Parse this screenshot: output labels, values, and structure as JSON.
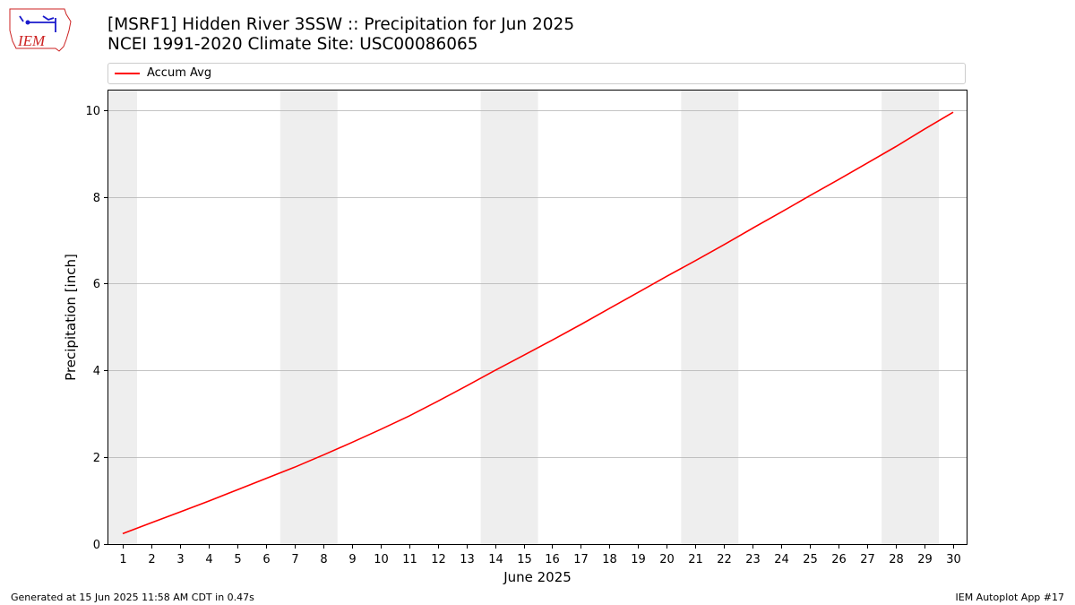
{
  "header": {
    "title_line1": "[MSRF1] Hidden River 3SSW :: Precipitation for Jun 2025",
    "title_line2": "NCEI 1991-2020 Climate Site: USC00086065",
    "logo_text": "IEM"
  },
  "footer": {
    "generated": "Generated at 15 Jun 2025 11:58 AM CDT in 0.47s",
    "app": "IEM Autoplot App #17"
  },
  "colors": {
    "line": "#ff0000",
    "weekend_band": "#eeeeee",
    "grid": "#b0b0b0",
    "logo_red": "#cc2222",
    "logo_blue": "#1a1acc"
  },
  "chart_data": {
    "type": "line",
    "title": "",
    "xlabel": "June 2025",
    "ylabel": "Precipitation [inch]",
    "xlim": [
      0.5,
      30.5
    ],
    "ylim": [
      0,
      10.45
    ],
    "x_ticks": [
      "1",
      "2",
      "3",
      "4",
      "5",
      "6",
      "7",
      "8",
      "9",
      "10",
      "11",
      "12",
      "13",
      "14",
      "15",
      "16",
      "17",
      "18",
      "19",
      "20",
      "21",
      "22",
      "23",
      "24",
      "25",
      "26",
      "27",
      "28",
      "29",
      "30"
    ],
    "y_ticks": [
      "0",
      "2",
      "4",
      "6",
      "8",
      "10"
    ],
    "y_tick_values": [
      0,
      2,
      4,
      6,
      8,
      10
    ],
    "grid": "horizontal",
    "legend_position": "top",
    "weekend_bands": [
      [
        0.5,
        1.5
      ],
      [
        6.5,
        8.5
      ],
      [
        13.5,
        15.5
      ],
      [
        20.5,
        22.5
      ],
      [
        27.5,
        29.5
      ]
    ],
    "series": [
      {
        "name": "Accum Avg",
        "x": [
          1,
          2,
          3,
          4,
          5,
          6,
          7,
          8,
          9,
          10,
          11,
          12,
          13,
          14,
          15,
          16,
          17,
          18,
          19,
          20,
          21,
          22,
          23,
          24,
          25,
          26,
          27,
          28,
          29,
          30
        ],
        "values": [
          0.24,
          0.49,
          0.74,
          0.99,
          1.25,
          1.51,
          1.77,
          2.05,
          2.34,
          2.64,
          2.95,
          3.29,
          3.64,
          4.0,
          4.35,
          4.7,
          5.06,
          5.43,
          5.8,
          6.17,
          6.53,
          6.9,
          7.28,
          7.65,
          8.03,
          8.4,
          8.78,
          9.16,
          9.56,
          9.95
        ]
      }
    ]
  }
}
